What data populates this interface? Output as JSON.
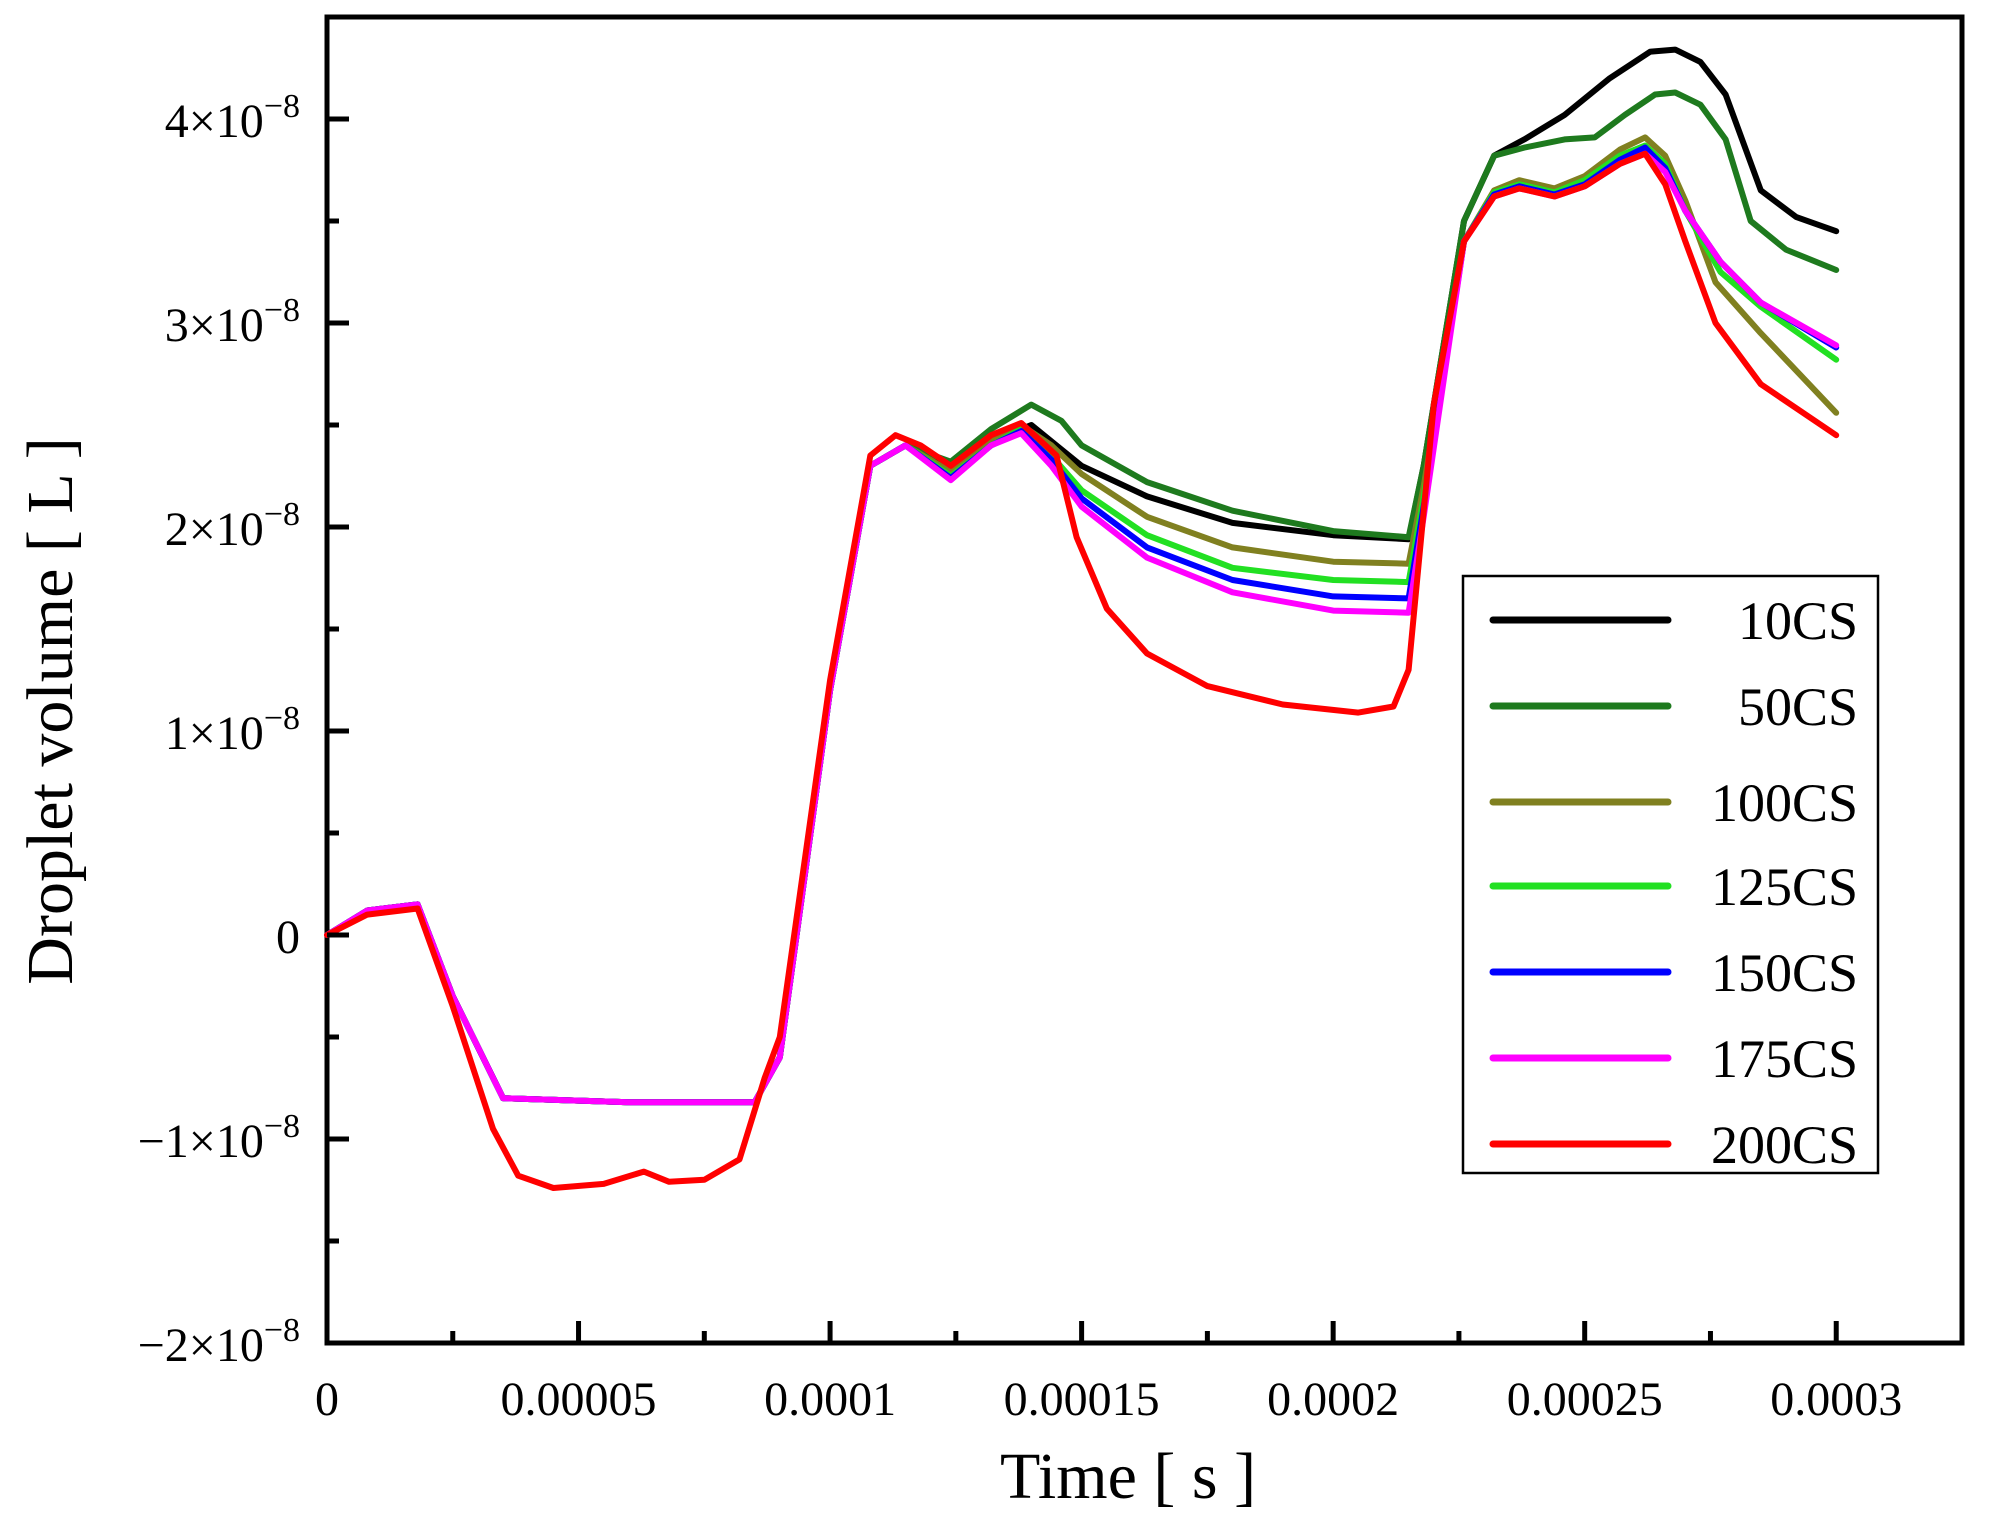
{
  "chart_data": {
    "type": "line",
    "title": "",
    "xlabel": "Time [ s ]",
    "ylabel": "Droplet volume [ L ]",
    "xlim": [
      0,
      0.000325
    ],
    "ylim": [
      -2e-08,
      4.5e-08
    ],
    "x_ticks": [
      {
        "value": 0,
        "label": "0"
      },
      {
        "value": 5e-05,
        "label": "0.00005"
      },
      {
        "value": 0.0001,
        "label": "0.0001"
      },
      {
        "value": 0.00015,
        "label": "0.00015"
      },
      {
        "value": 0.0002,
        "label": "0.0002"
      },
      {
        "value": 0.00025,
        "label": "0.00025"
      },
      {
        "value": 0.0003,
        "label": "0.0003"
      }
    ],
    "y_ticks": [
      {
        "value": -2e-08,
        "mantissa": "−2×10",
        "exponent": "−8"
      },
      {
        "value": -1e-08,
        "mantissa": "−1×10",
        "exponent": "−8"
      },
      {
        "value": 0,
        "mantissa": "0",
        "exponent": ""
      },
      {
        "value": 1e-08,
        "mantissa": "1×10",
        "exponent": "−8"
      },
      {
        "value": 2e-08,
        "mantissa": "2×10",
        "exponent": "−8"
      },
      {
        "value": 3e-08,
        "mantissa": "3×10",
        "exponent": "−8"
      },
      {
        "value": 4e-08,
        "mantissa": "4×10",
        "exponent": "−8"
      }
    ],
    "grid": false,
    "legend_position": "right",
    "series": [
      {
        "name": "10CS",
        "color": "#000000",
        "points": [
          [
            0,
            0
          ],
          [
            8e-06,
            1.2e-09
          ],
          [
            1.8e-05,
            1.5e-09
          ],
          [
            2.5e-05,
            -3e-09
          ],
          [
            3.5e-05,
            -8e-09
          ],
          [
            6e-05,
            -8.2e-09
          ],
          [
            8.5e-05,
            -8.2e-09
          ],
          [
            9e-05,
            -6e-09
          ],
          [
            0.0001,
            1.2e-08
          ],
          [
            0.000108,
            2.3e-08
          ],
          [
            0.000115,
            2.4e-08
          ],
          [
            0.000124,
            2.3e-08
          ],
          [
            0.000132,
            2.42e-08
          ],
          [
            0.00014,
            2.5e-08
          ],
          [
            0.000145,
            2.4e-08
          ],
          [
            0.00015,
            2.3e-08
          ],
          [
            0.000163,
            2.15e-08
          ],
          [
            0.00018,
            2.02e-08
          ],
          [
            0.0002,
            1.96e-08
          ],
          [
            0.000215,
            1.94e-08
          ],
          [
            0.000218,
            2.3e-08
          ],
          [
            0.000226,
            3.5e-08
          ],
          [
            0.000232,
            3.82e-08
          ],
          [
            0.000238,
            3.9e-08
          ],
          [
            0.000246,
            4.02e-08
          ],
          [
            0.000255,
            4.2e-08
          ],
          [
            0.000263,
            4.33e-08
          ],
          [
            0.000268,
            4.34e-08
          ],
          [
            0.000273,
            4.28e-08
          ],
          [
            0.000278,
            4.12e-08
          ],
          [
            0.000285,
            3.65e-08
          ],
          [
            0.000292,
            3.52e-08
          ],
          [
            0.0003,
            3.45e-08
          ]
        ]
      },
      {
        "name": "50CS",
        "color": "#1e7a1e",
        "points": [
          [
            0,
            0
          ],
          [
            8e-06,
            1.2e-09
          ],
          [
            1.8e-05,
            1.5e-09
          ],
          [
            2.5e-05,
            -3e-09
          ],
          [
            3.5e-05,
            -8e-09
          ],
          [
            6e-05,
            -8.2e-09
          ],
          [
            8.5e-05,
            -8.2e-09
          ],
          [
            9e-05,
            -6e-09
          ],
          [
            0.0001,
            1.2e-08
          ],
          [
            0.000108,
            2.3e-08
          ],
          [
            0.000115,
            2.4e-08
          ],
          [
            0.000124,
            2.32e-08
          ],
          [
            0.000132,
            2.48e-08
          ],
          [
            0.00014,
            2.6e-08
          ],
          [
            0.000146,
            2.52e-08
          ],
          [
            0.00015,
            2.4e-08
          ],
          [
            0.000163,
            2.22e-08
          ],
          [
            0.00018,
            2.08e-08
          ],
          [
            0.0002,
            1.98e-08
          ],
          [
            0.000215,
            1.95e-08
          ],
          [
            0.000218,
            2.3e-08
          ],
          [
            0.000226,
            3.5e-08
          ],
          [
            0.000232,
            3.82e-08
          ],
          [
            0.000238,
            3.86e-08
          ],
          [
            0.000246,
            3.9e-08
          ],
          [
            0.000252,
            3.91e-08
          ],
          [
            0.000258,
            4.02e-08
          ],
          [
            0.000264,
            4.12e-08
          ],
          [
            0.000268,
            4.13e-08
          ],
          [
            0.000273,
            4.07e-08
          ],
          [
            0.000278,
            3.9e-08
          ],
          [
            0.000283,
            3.5e-08
          ],
          [
            0.00029,
            3.36e-08
          ],
          [
            0.0003,
            3.26e-08
          ]
        ]
      },
      {
        "name": "100CS",
        "color": "#808020",
        "points": [
          [
            0,
            0
          ],
          [
            8e-06,
            1.2e-09
          ],
          [
            1.8e-05,
            1.5e-09
          ],
          [
            2.5e-05,
            -3e-09
          ],
          [
            3.5e-05,
            -8e-09
          ],
          [
            6e-05,
            -8.2e-09
          ],
          [
            8.5e-05,
            -8.2e-09
          ],
          [
            9e-05,
            -6e-09
          ],
          [
            0.0001,
            1.2e-08
          ],
          [
            0.000108,
            2.3e-08
          ],
          [
            0.000115,
            2.4e-08
          ],
          [
            0.000124,
            2.27e-08
          ],
          [
            0.000132,
            2.42e-08
          ],
          [
            0.000138,
            2.5e-08
          ],
          [
            0.000144,
            2.4e-08
          ],
          [
            0.00015,
            2.26e-08
          ],
          [
            0.000163,
            2.05e-08
          ],
          [
            0.00018,
            1.9e-08
          ],
          [
            0.0002,
            1.83e-08
          ],
          [
            0.000215,
            1.82e-08
          ],
          [
            0.000218,
            2.2e-08
          ],
          [
            0.000226,
            3.4e-08
          ],
          [
            0.000232,
            3.65e-08
          ],
          [
            0.000237,
            3.7e-08
          ],
          [
            0.000244,
            3.66e-08
          ],
          [
            0.00025,
            3.72e-08
          ],
          [
            0.000257,
            3.85e-08
          ],
          [
            0.000262,
            3.91e-08
          ],
          [
            0.000266,
            3.82e-08
          ],
          [
            0.00027,
            3.6e-08
          ],
          [
            0.000276,
            3.2e-08
          ],
          [
            0.000285,
            2.95e-08
          ],
          [
            0.0003,
            2.56e-08
          ]
        ]
      },
      {
        "name": "125CS",
        "color": "#22e022",
        "points": [
          [
            0,
            0
          ],
          [
            8e-06,
            1.2e-09
          ],
          [
            1.8e-05,
            1.5e-09
          ],
          [
            2.5e-05,
            -3e-09
          ],
          [
            3.5e-05,
            -8e-09
          ],
          [
            6e-05,
            -8.2e-09
          ],
          [
            8.5e-05,
            -8.2e-09
          ],
          [
            9e-05,
            -6e-09
          ],
          [
            0.0001,
            1.2e-08
          ],
          [
            0.000108,
            2.3e-08
          ],
          [
            0.000115,
            2.4e-08
          ],
          [
            0.000124,
            2.25e-08
          ],
          [
            0.000132,
            2.4e-08
          ],
          [
            0.000138,
            2.48e-08
          ],
          [
            0.000144,
            2.35e-08
          ],
          [
            0.00015,
            2.18e-08
          ],
          [
            0.000163,
            1.96e-08
          ],
          [
            0.00018,
            1.8e-08
          ],
          [
            0.0002,
            1.74e-08
          ],
          [
            0.000215,
            1.73e-08
          ],
          [
            0.000218,
            2.15e-08
          ],
          [
            0.000226,
            3.4e-08
          ],
          [
            0.000232,
            3.64e-08
          ],
          [
            0.000237,
            3.68e-08
          ],
          [
            0.000244,
            3.64e-08
          ],
          [
            0.00025,
            3.7e-08
          ],
          [
            0.000257,
            3.82e-08
          ],
          [
            0.000262,
            3.87e-08
          ],
          [
            0.000266,
            3.78e-08
          ],
          [
            0.00027,
            3.55e-08
          ],
          [
            0.000277,
            3.25e-08
          ],
          [
            0.000285,
            3.08e-08
          ],
          [
            0.0003,
            2.82e-08
          ]
        ]
      },
      {
        "name": "150CS",
        "color": "#0000ff",
        "points": [
          [
            0,
            0
          ],
          [
            8e-06,
            1.2e-09
          ],
          [
            1.8e-05,
            1.5e-09
          ],
          [
            2.5e-05,
            -3e-09
          ],
          [
            3.5e-05,
            -8e-09
          ],
          [
            6e-05,
            -8.2e-09
          ],
          [
            8.5e-05,
            -8.2e-09
          ],
          [
            9e-05,
            -6e-09
          ],
          [
            0.0001,
            1.2e-08
          ],
          [
            0.000108,
            2.3e-08
          ],
          [
            0.000115,
            2.4e-08
          ],
          [
            0.000124,
            2.24e-08
          ],
          [
            0.000132,
            2.4e-08
          ],
          [
            0.000138,
            2.47e-08
          ],
          [
            0.000144,
            2.33e-08
          ],
          [
            0.00015,
            2.14e-08
          ],
          [
            0.000163,
            1.9e-08
          ],
          [
            0.00018,
            1.74e-08
          ],
          [
            0.0002,
            1.66e-08
          ],
          [
            0.000215,
            1.65e-08
          ],
          [
            0.000218,
            2.1e-08
          ],
          [
            0.000226,
            3.4e-08
          ],
          [
            0.000232,
            3.63e-08
          ],
          [
            0.000237,
            3.67e-08
          ],
          [
            0.000244,
            3.63e-08
          ],
          [
            0.00025,
            3.68e-08
          ],
          [
            0.000257,
            3.8e-08
          ],
          [
            0.000262,
            3.86e-08
          ],
          [
            0.000266,
            3.76e-08
          ],
          [
            0.00027,
            3.55e-08
          ],
          [
            0.000277,
            3.3e-08
          ],
          [
            0.000285,
            3.1e-08
          ],
          [
            0.0003,
            2.88e-08
          ]
        ]
      },
      {
        "name": "175CS",
        "color": "#ff00ff",
        "points": [
          [
            0,
            0
          ],
          [
            8e-06,
            1.2e-09
          ],
          [
            1.8e-05,
            1.5e-09
          ],
          [
            2.5e-05,
            -3e-09
          ],
          [
            3.5e-05,
            -8e-09
          ],
          [
            6e-05,
            -8.2e-09
          ],
          [
            8.5e-05,
            -8.2e-09
          ],
          [
            9e-05,
            -6e-09
          ],
          [
            0.0001,
            1.2e-08
          ],
          [
            0.000108,
            2.3e-08
          ],
          [
            0.000115,
            2.4e-08
          ],
          [
            0.000124,
            2.23e-08
          ],
          [
            0.000132,
            2.4e-08
          ],
          [
            0.000138,
            2.46e-08
          ],
          [
            0.000144,
            2.3e-08
          ],
          [
            0.00015,
            2.1e-08
          ],
          [
            0.000163,
            1.85e-08
          ],
          [
            0.00018,
            1.68e-08
          ],
          [
            0.0002,
            1.59e-08
          ],
          [
            0.000215,
            1.58e-08
          ],
          [
            0.000218,
            2.05e-08
          ],
          [
            0.000226,
            3.4e-08
          ],
          [
            0.000232,
            3.62e-08
          ],
          [
            0.000237,
            3.66e-08
          ],
          [
            0.000244,
            3.62e-08
          ],
          [
            0.00025,
            3.67e-08
          ],
          [
            0.000257,
            3.78e-08
          ],
          [
            0.000262,
            3.83e-08
          ],
          [
            0.000266,
            3.74e-08
          ],
          [
            0.00027,
            3.55e-08
          ],
          [
            0.000277,
            3.3e-08
          ],
          [
            0.000285,
            3.1e-08
          ],
          [
            0.0003,
            2.89e-08
          ]
        ]
      },
      {
        "name": "200CS",
        "color": "#ff0000",
        "points": [
          [
            0,
            0
          ],
          [
            8e-06,
            1e-09
          ],
          [
            1.8e-05,
            1.3e-09
          ],
          [
            2.5e-05,
            -3.5e-09
          ],
          [
            3.3e-05,
            -9.5e-09
          ],
          [
            3.8e-05,
            -1.18e-08
          ],
          [
            4.5e-05,
            -1.24e-08
          ],
          [
            5.5e-05,
            -1.22e-08
          ],
          [
            6.3e-05,
            -1.16e-08
          ],
          [
            6.8e-05,
            -1.21e-08
          ],
          [
            7.5e-05,
            -1.2e-08
          ],
          [
            8.2e-05,
            -1.1e-08
          ],
          [
            8.7e-05,
            -7e-09
          ],
          [
            9e-05,
            -5e-09
          ],
          [
            0.0001,
            1.25e-08
          ],
          [
            0.000108,
            2.35e-08
          ],
          [
            0.000113,
            2.45e-08
          ],
          [
            0.000118,
            2.4e-08
          ],
          [
            0.000124,
            2.3e-08
          ],
          [
            0.000132,
            2.45e-08
          ],
          [
            0.000138,
            2.51e-08
          ],
          [
            0.000145,
            2.35e-08
          ],
          [
            0.000149,
            1.95e-08
          ],
          [
            0.000155,
            1.6e-08
          ],
          [
            0.000163,
            1.38e-08
          ],
          [
            0.000175,
            1.22e-08
          ],
          [
            0.00019,
            1.13e-08
          ],
          [
            0.000205,
            1.09e-08
          ],
          [
            0.000212,
            1.12e-08
          ],
          [
            0.000215,
            1.3e-08
          ],
          [
            0.00022,
            2.6e-08
          ],
          [
            0.000226,
            3.4e-08
          ],
          [
            0.000232,
            3.62e-08
          ],
          [
            0.000237,
            3.66e-08
          ],
          [
            0.000244,
            3.62e-08
          ],
          [
            0.00025,
            3.67e-08
          ],
          [
            0.000257,
            3.78e-08
          ],
          [
            0.000262,
            3.83e-08
          ],
          [
            0.000266,
            3.68e-08
          ],
          [
            0.00027,
            3.4e-08
          ],
          [
            0.000276,
            3e-08
          ],
          [
            0.000285,
            2.7e-08
          ],
          [
            0.0003,
            2.45e-08
          ]
        ]
      }
    ]
  }
}
